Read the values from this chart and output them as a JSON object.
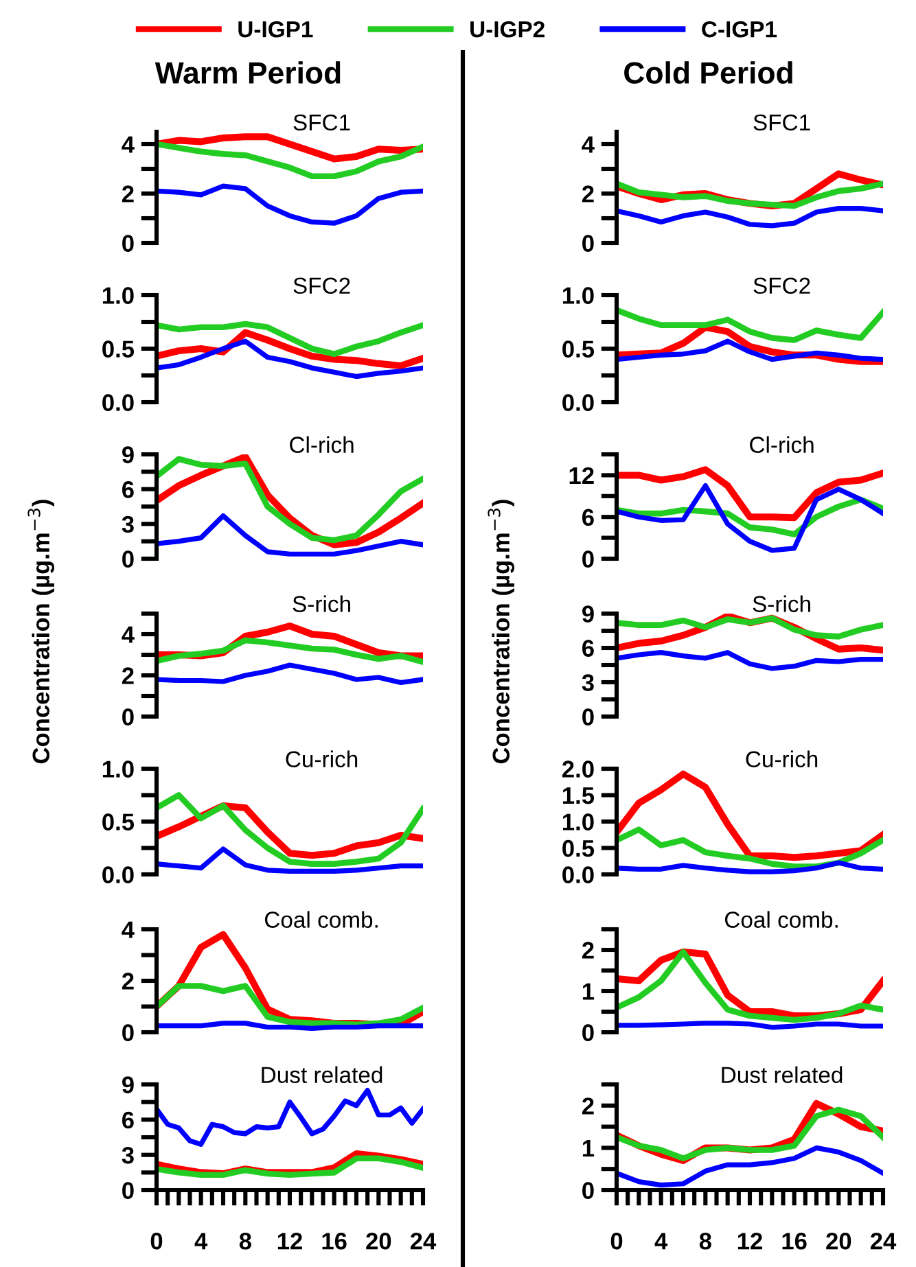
{
  "chart_data": [
    {
      "type": "line",
      "title": "SFC1",
      "subtitle": "Warm Period",
      "legend": "top",
      "tick_labels": "y",
      "x": [
        0,
        2,
        4,
        6,
        8,
        10,
        12,
        14,
        16,
        18,
        20,
        22,
        24
      ],
      "xlim": [
        0,
        24
      ],
      "ylim": [
        0,
        4.5
      ],
      "yticks": [
        0,
        {
          "value": 1,
          "label": null
        },
        2,
        {
          "value": 3,
          "label": null
        },
        4
      ],
      "series": [
        {
          "name": "U-IGP1",
          "color": "#ff0000",
          "values": [
            4.0,
            4.15,
            4.1,
            4.25,
            4.3,
            4.3,
            4.0,
            3.7,
            3.4,
            3.5,
            3.8,
            3.75,
            3.8
          ]
        },
        {
          "name": "U-IGP2",
          "color": "#22cc22",
          "values": [
            4.0,
            3.85,
            3.7,
            3.6,
            3.55,
            3.3,
            3.05,
            2.7,
            2.7,
            2.9,
            3.3,
            3.5,
            3.9
          ]
        },
        {
          "name": "C-IGP1",
          "color": "#0000ff",
          "values": [
            2.1,
            2.05,
            1.95,
            2.3,
            2.2,
            1.5,
            1.1,
            0.85,
            0.8,
            1.1,
            1.8,
            2.05,
            2.1
          ]
        }
      ]
    },
    {
      "type": "line",
      "title": "SFC2",
      "tick_labels": "y",
      "x": [
        0,
        2,
        4,
        6,
        8,
        10,
        12,
        14,
        16,
        18,
        20,
        22,
        24
      ],
      "xlim": [
        0,
        24
      ],
      "ylim": [
        0,
        1
      ],
      "yticks": [
        {
          "value": 0,
          "label": "0.0"
        },
        {
          "value": 0.25,
          "label": null
        },
        {
          "value": 0.5,
          "label": "0.5"
        },
        {
          "value": 0.75,
          "label": null
        },
        {
          "value": 1,
          "label": "1.0"
        }
      ],
      "series": [
        {
          "name": "U-IGP1",
          "color": "#ff0000",
          "values": [
            0.43,
            0.48,
            0.5,
            0.47,
            0.65,
            0.58,
            0.5,
            0.43,
            0.4,
            0.39,
            0.36,
            0.34,
            0.41
          ]
        },
        {
          "name": "U-IGP2",
          "color": "#22cc22",
          "values": [
            0.72,
            0.68,
            0.7,
            0.7,
            0.73,
            0.7,
            0.6,
            0.5,
            0.45,
            0.52,
            0.57,
            0.65,
            0.72
          ]
        },
        {
          "name": "C-IGP1",
          "color": "#0000ff",
          "values": [
            0.32,
            0.35,
            0.42,
            0.5,
            0.57,
            0.42,
            0.38,
            0.32,
            0.28,
            0.24,
            0.27,
            0.29,
            0.32
          ]
        }
      ]
    },
    {
      "type": "line",
      "title": "Cl-rich",
      "tick_labels": "y",
      "x": [
        0,
        2,
        4,
        6,
        8,
        10,
        12,
        14,
        16,
        18,
        20,
        22,
        24
      ],
      "xlim": [
        0,
        24
      ],
      "ylim": [
        0,
        9
      ],
      "yticks": [
        0,
        {
          "value": 1.5,
          "label": null
        },
        3,
        {
          "value": 4.5,
          "label": null
        },
        6,
        {
          "value": 7.5,
          "label": null
        },
        9
      ],
      "series": [
        {
          "name": "U-IGP1",
          "color": "#ff0000",
          "values": [
            5.0,
            6.3,
            7.2,
            8.0,
            8.8,
            5.5,
            3.5,
            2.0,
            1.2,
            1.4,
            2.3,
            3.5,
            4.8
          ]
        },
        {
          "name": "U-IGP2",
          "color": "#22cc22",
          "values": [
            7.1,
            8.6,
            8.1,
            8.0,
            8.2,
            4.5,
            3.0,
            1.8,
            1.6,
            2.0,
            3.8,
            5.8,
            6.9
          ]
        },
        {
          "name": "C-IGP1",
          "color": "#0000ff",
          "values": [
            1.3,
            1.5,
            1.8,
            3.7,
            2.0,
            0.6,
            0.4,
            0.4,
            0.4,
            0.7,
            1.1,
            1.5,
            1.2
          ]
        }
      ]
    },
    {
      "type": "line",
      "title": "S-rich",
      "ylabel": "Concentration (µg.m$^{−3}$)",
      "tick_labels": "y",
      "x": [
        0,
        2,
        4,
        6,
        8,
        10,
        12,
        14,
        16,
        18,
        20,
        22,
        24
      ],
      "xlim": [
        0,
        24
      ],
      "ylim": [
        0,
        5
      ],
      "yticks": [
        0,
        {
          "value": 1,
          "label": null
        },
        2,
        {
          "value": 3,
          "label": null
        },
        4,
        {
          "value": 5,
          "label": null
        }
      ],
      "series": [
        {
          "name": "U-IGP1",
          "color": "#ff0000",
          "values": [
            3.0,
            3.0,
            2.95,
            3.1,
            3.9,
            4.1,
            4.4,
            4.0,
            3.9,
            3.5,
            3.1,
            2.95,
            2.95
          ]
        },
        {
          "name": "U-IGP2",
          "color": "#22cc22",
          "values": [
            2.7,
            2.95,
            3.05,
            3.2,
            3.7,
            3.6,
            3.45,
            3.3,
            3.25,
            3.0,
            2.8,
            2.95,
            2.65
          ]
        },
        {
          "name": "C-IGP1",
          "color": "#0000ff",
          "values": [
            1.8,
            1.75,
            1.75,
            1.7,
            2.0,
            2.2,
            2.5,
            2.3,
            2.1,
            1.8,
            1.9,
            1.65,
            1.8
          ]
        }
      ]
    },
    {
      "type": "line",
      "title": "Cu-rich",
      "tick_labels": "y",
      "x": [
        0,
        2,
        4,
        6,
        8,
        10,
        12,
        14,
        16,
        18,
        20,
        22,
        24
      ],
      "xlim": [
        0,
        24
      ],
      "ylim": [
        0,
        1
      ],
      "yticks": [
        {
          "value": 0,
          "label": "0.0"
        },
        {
          "value": 0.25,
          "label": null
        },
        {
          "value": 0.5,
          "label": "0.5"
        },
        {
          "value": 0.75,
          "label": null
        },
        {
          "value": 1,
          "label": "1.0"
        }
      ],
      "series": [
        {
          "name": "U-IGP1",
          "color": "#ff0000",
          "values": [
            0.36,
            0.45,
            0.55,
            0.65,
            0.63,
            0.4,
            0.2,
            0.18,
            0.2,
            0.27,
            0.3,
            0.37,
            0.34
          ]
        },
        {
          "name": "U-IGP2",
          "color": "#22cc22",
          "values": [
            0.63,
            0.75,
            0.53,
            0.65,
            0.42,
            0.25,
            0.12,
            0.1,
            0.1,
            0.12,
            0.15,
            0.3,
            0.62
          ]
        },
        {
          "name": "C-IGP1",
          "color": "#0000ff",
          "values": [
            0.1,
            0.08,
            0.06,
            0.24,
            0.09,
            0.04,
            0.03,
            0.03,
            0.03,
            0.04,
            0.06,
            0.08,
            0.08
          ]
        }
      ]
    },
    {
      "type": "line",
      "title": "Coal comb.",
      "tick_labels": "y",
      "x": [
        0,
        2,
        4,
        6,
        8,
        10,
        12,
        14,
        16,
        18,
        20,
        22,
        24
      ],
      "xlim": [
        0,
        24
      ],
      "ylim": [
        0,
        4
      ],
      "yticks": [
        0,
        {
          "value": 1,
          "label": null
        },
        2,
        {
          "value": 3,
          "label": null
        },
        4
      ],
      "series": [
        {
          "name": "U-IGP1",
          "color": "#ff0000",
          "values": [
            1.0,
            1.8,
            3.3,
            3.8,
            2.5,
            0.9,
            0.5,
            0.45,
            0.35,
            0.35,
            0.3,
            0.3,
            0.8
          ]
        },
        {
          "name": "U-IGP2",
          "color": "#22cc22",
          "values": [
            1.0,
            1.8,
            1.8,
            1.6,
            1.8,
            0.6,
            0.4,
            0.35,
            0.35,
            0.3,
            0.35,
            0.5,
            0.95
          ]
        },
        {
          "name": "C-IGP1",
          "color": "#0000ff",
          "values": [
            0.25,
            0.25,
            0.25,
            0.35,
            0.35,
            0.2,
            0.2,
            0.15,
            0.2,
            0.2,
            0.25,
            0.25,
            0.25
          ]
        }
      ]
    },
    {
      "type": "line",
      "title": "Dust related",
      "x": [
        0,
        2,
        4,
        6,
        8,
        10,
        12,
        14,
        16,
        18,
        20,
        22,
        24
      ],
      "xlim": [
        0,
        24
      ],
      "xticks": [
        0,
        {
          "value": 1,
          "label": null
        },
        {
          "value": 2,
          "label": null
        },
        {
          "value": 3,
          "label": null
        },
        4,
        {
          "value": 5,
          "label": null
        },
        {
          "value": 6,
          "label": null
        },
        {
          "value": 7,
          "label": null
        },
        8,
        {
          "value": 9,
          "label": null
        },
        {
          "value": 10,
          "label": null
        },
        {
          "value": 11,
          "label": null
        },
        12,
        {
          "value": 13,
          "label": null
        },
        {
          "value": 14,
          "label": null
        },
        {
          "value": 15,
          "label": null
        },
        16,
        {
          "value": 17,
          "label": null
        },
        {
          "value": 18,
          "label": null
        },
        {
          "value": 19,
          "label": null
        },
        20,
        {
          "value": 21,
          "label": null
        },
        {
          "value": 22,
          "label": null
        },
        {
          "value": 23,
          "label": null
        },
        24
      ],
      "ylim": [
        0,
        9
      ],
      "yticks": [
        0,
        {
          "value": 1.5,
          "label": null
        },
        3,
        {
          "value": 4.5,
          "label": null
        },
        6,
        {
          "value": 7.5,
          "label": null
        },
        9
      ],
      "series": [
        {
          "name": "U-IGP1",
          "color": "#ff0000",
          "values": [
            2.2,
            1.8,
            1.5,
            1.4,
            1.8,
            1.5,
            1.5,
            1.5,
            1.9,
            3.1,
            2.9,
            2.6,
            2.2
          ]
        },
        {
          "name": "U-IGP2",
          "color": "#22cc22",
          "values": [
            1.8,
            1.5,
            1.3,
            1.3,
            1.7,
            1.4,
            1.3,
            1.4,
            1.5,
            2.7,
            2.7,
            2.4,
            1.9
          ]
        },
        {
          "name": "C-IGP1",
          "color": "#0000ff",
          "x": [
            0,
            1,
            2,
            3,
            4,
            5,
            6,
            7,
            8,
            9,
            10,
            11,
            12,
            13,
            14,
            15,
            16,
            17,
            18,
            19,
            20,
            21,
            22,
            23,
            24
          ],
          "values": [
            6.9,
            5.6,
            5.3,
            4.2,
            3.9,
            5.6,
            5.4,
            4.9,
            4.8,
            5.4,
            5.3,
            5.4,
            7.5,
            6.2,
            4.8,
            5.2,
            6.3,
            7.6,
            7.2,
            8.5,
            6.4,
            6.4,
            7.0,
            5.7,
            6.9
          ]
        }
      ]
    },
    {
      "type": "line",
      "title": "SFC1",
      "subtitle": "Cold Period",
      "tick_labels": "y",
      "x": [
        0,
        2,
        4,
        6,
        8,
        10,
        12,
        14,
        16,
        18,
        20,
        22,
        24
      ],
      "xlim": [
        0,
        24
      ],
      "ylim": [
        0,
        4.5
      ],
      "yticks": [
        0,
        {
          "value": 1,
          "label": null
        },
        2,
        {
          "value": 3,
          "label": null
        },
        4
      ],
      "series": [
        {
          "name": "U-IGP1",
          "color": "#ff0000",
          "values": [
            2.3,
            2.0,
            1.75,
            1.95,
            2.0,
            1.75,
            1.6,
            1.5,
            1.6,
            2.2,
            2.8,
            2.55,
            2.35
          ]
        },
        {
          "name": "U-IGP2",
          "color": "#22cc22",
          "values": [
            2.4,
            2.05,
            1.95,
            1.85,
            1.9,
            1.7,
            1.6,
            1.55,
            1.5,
            1.85,
            2.1,
            2.2,
            2.4
          ]
        },
        {
          "name": "C-IGP1",
          "color": "#0000ff",
          "values": [
            1.3,
            1.1,
            0.85,
            1.1,
            1.25,
            1.05,
            0.75,
            0.7,
            0.8,
            1.25,
            1.4,
            1.4,
            1.3
          ]
        }
      ]
    },
    {
      "type": "line",
      "title": "SFC2",
      "tick_labels": "y",
      "x": [
        0,
        2,
        4,
        6,
        8,
        10,
        12,
        14,
        16,
        18,
        20,
        22,
        24
      ],
      "xlim": [
        0,
        24
      ],
      "ylim": [
        0,
        1
      ],
      "yticks": [
        {
          "value": 0,
          "label": "0.0"
        },
        {
          "value": 0.25,
          "label": null
        },
        {
          "value": 0.5,
          "label": "0.5"
        },
        {
          "value": 0.75,
          "label": null
        },
        {
          "value": 1,
          "label": "1.0"
        }
      ],
      "series": [
        {
          "name": "U-IGP1",
          "color": "#ff0000",
          "values": [
            0.44,
            0.45,
            0.46,
            0.55,
            0.7,
            0.66,
            0.52,
            0.47,
            0.44,
            0.44,
            0.4,
            0.38,
            0.38
          ]
        },
        {
          "name": "U-IGP2",
          "color": "#22cc22",
          "values": [
            0.86,
            0.78,
            0.72,
            0.72,
            0.72,
            0.77,
            0.66,
            0.6,
            0.58,
            0.67,
            0.63,
            0.6,
            0.84
          ]
        },
        {
          "name": "C-IGP1",
          "color": "#0000ff",
          "values": [
            0.4,
            0.42,
            0.44,
            0.45,
            0.48,
            0.57,
            0.47,
            0.4,
            0.43,
            0.46,
            0.44,
            0.41,
            0.4
          ]
        }
      ]
    },
    {
      "type": "line",
      "title": "Cl-rich",
      "tick_labels": "y",
      "x": [
        0,
        2,
        4,
        6,
        8,
        10,
        12,
        14,
        16,
        18,
        20,
        22,
        24
      ],
      "xlim": [
        0,
        24
      ],
      "ylim": [
        0,
        15
      ],
      "yticks": [
        0,
        {
          "value": 3,
          "label": null
        },
        6,
        {
          "value": 9,
          "label": null
        },
        12,
        {
          "value": 15,
          "label": null
        }
      ],
      "series": [
        {
          "name": "U-IGP1",
          "color": "#ff0000",
          "values": [
            12.0,
            12.0,
            11.3,
            11.8,
            12.8,
            10.5,
            6.0,
            6.0,
            5.9,
            9.5,
            11.0,
            11.3,
            12.3
          ]
        },
        {
          "name": "U-IGP2",
          "color": "#22cc22",
          "values": [
            7.0,
            6.5,
            6.5,
            7.0,
            6.8,
            6.5,
            4.5,
            4.2,
            3.5,
            6.0,
            7.5,
            8.5,
            7.2
          ]
        },
        {
          "name": "C-IGP1",
          "color": "#0000ff",
          "values": [
            6.8,
            6.0,
            5.5,
            5.6,
            10.5,
            5.0,
            2.5,
            1.2,
            1.5,
            8.5,
            10.0,
            8.5,
            6.5
          ]
        }
      ]
    },
    {
      "type": "line",
      "title": "S-rich",
      "ylabel": "Concentration (µg.m$^{−3}$)",
      "tick_labels": "y",
      "x": [
        0,
        2,
        4,
        6,
        8,
        10,
        12,
        14,
        16,
        18,
        20,
        22,
        24
      ],
      "xlim": [
        0,
        24
      ],
      "ylim": [
        0,
        9
      ],
      "yticks": [
        0,
        {
          "value": 1.5,
          "label": null
        },
        3,
        {
          "value": 4.5,
          "label": null
        },
        6,
        {
          "value": 7.5,
          "label": null
        },
        9
      ],
      "series": [
        {
          "name": "U-IGP1",
          "color": "#ff0000",
          "values": [
            6.0,
            6.4,
            6.6,
            7.1,
            7.8,
            8.8,
            8.2,
            8.6,
            7.8,
            6.8,
            5.9,
            6.0,
            5.8
          ]
        },
        {
          "name": "U-IGP2",
          "color": "#22cc22",
          "values": [
            8.2,
            8.0,
            8.0,
            8.4,
            7.8,
            8.5,
            8.2,
            8.6,
            7.6,
            7.1,
            7.0,
            7.6,
            8.0
          ]
        },
        {
          "name": "C-IGP1",
          "color": "#0000ff",
          "values": [
            5.1,
            5.4,
            5.6,
            5.3,
            5.1,
            5.6,
            4.6,
            4.2,
            4.4,
            4.9,
            4.8,
            5.0,
            5.0
          ]
        }
      ]
    },
    {
      "type": "line",
      "title": "Cu-rich",
      "tick_labels": "y",
      "x": [
        0,
        2,
        4,
        6,
        8,
        10,
        12,
        14,
        16,
        18,
        20,
        22,
        24
      ],
      "xlim": [
        0,
        24
      ],
      "ylim": [
        0,
        2
      ],
      "yticks": [
        {
          "value": 0,
          "label": "0.0"
        },
        {
          "value": 0.5,
          "label": "0.5"
        },
        {
          "value": 1,
          "label": "1.0"
        },
        {
          "value": 1.5,
          "label": "1.5"
        },
        {
          "value": 2,
          "label": "2.0"
        }
      ],
      "series": [
        {
          "name": "U-IGP1",
          "color": "#ff0000",
          "values": [
            0.8,
            1.35,
            1.6,
            1.9,
            1.65,
            0.95,
            0.35,
            0.35,
            0.32,
            0.35,
            0.4,
            0.45,
            0.75
          ]
        },
        {
          "name": "U-IGP2",
          "color": "#22cc22",
          "values": [
            0.65,
            0.85,
            0.55,
            0.65,
            0.42,
            0.35,
            0.3,
            0.2,
            0.15,
            0.15,
            0.22,
            0.4,
            0.65
          ]
        },
        {
          "name": "C-IGP1",
          "color": "#0000ff",
          "values": [
            0.12,
            0.1,
            0.1,
            0.17,
            0.12,
            0.08,
            0.05,
            0.05,
            0.07,
            0.12,
            0.22,
            0.12,
            0.1
          ]
        }
      ]
    },
    {
      "type": "line",
      "title": "Coal comb.",
      "tick_labels": "y",
      "x": [
        0,
        2,
        4,
        6,
        8,
        10,
        12,
        14,
        16,
        18,
        20,
        22,
        24
      ],
      "xlim": [
        0,
        24
      ],
      "ylim": [
        0,
        2.5
      ],
      "yticks": [
        0,
        {
          "value": 0.5,
          "label": null
        },
        1,
        {
          "value": 1.5,
          "label": null
        },
        2,
        {
          "value": 2.5,
          "label": null
        }
      ],
      "series": [
        {
          "name": "U-IGP1",
          "color": "#ff0000",
          "values": [
            1.3,
            1.25,
            1.75,
            1.95,
            1.9,
            0.9,
            0.5,
            0.5,
            0.4,
            0.4,
            0.45,
            0.55,
            1.25
          ]
        },
        {
          "name": "U-IGP2",
          "color": "#22cc22",
          "values": [
            0.6,
            0.85,
            1.25,
            1.95,
            1.2,
            0.55,
            0.4,
            0.35,
            0.3,
            0.35,
            0.45,
            0.65,
            0.55
          ]
        },
        {
          "name": "C-IGP1",
          "color": "#0000ff",
          "values": [
            0.17,
            0.17,
            0.18,
            0.2,
            0.22,
            0.22,
            0.2,
            0.12,
            0.15,
            0.2,
            0.2,
            0.15,
            0.15
          ]
        }
      ]
    },
    {
      "type": "line",
      "title": "Dust related",
      "x": [
        0,
        2,
        4,
        6,
        8,
        10,
        12,
        14,
        16,
        18,
        20,
        22,
        24
      ],
      "xlim": [
        0,
        24
      ],
      "xticks": [
        0,
        {
          "value": 1,
          "label": null
        },
        {
          "value": 2,
          "label": null
        },
        {
          "value": 3,
          "label": null
        },
        4,
        {
          "value": 5,
          "label": null
        },
        {
          "value": 6,
          "label": null
        },
        {
          "value": 7,
          "label": null
        },
        8,
        {
          "value": 9,
          "label": null
        },
        {
          "value": 10,
          "label": null
        },
        {
          "value": 11,
          "label": null
        },
        12,
        {
          "value": 13,
          "label": null
        },
        {
          "value": 14,
          "label": null
        },
        {
          "value": 15,
          "label": null
        },
        16,
        {
          "value": 17,
          "label": null
        },
        {
          "value": 18,
          "label": null
        },
        {
          "value": 19,
          "label": null
        },
        20,
        {
          "value": 21,
          "label": null
        },
        {
          "value": 22,
          "label": null
        },
        {
          "value": 23,
          "label": null
        },
        24
      ],
      "ylim": [
        0,
        2.5
      ],
      "yticks": [
        0,
        {
          "value": 0.5,
          "label": null
        },
        1,
        {
          "value": 1.5,
          "label": null
        },
        2,
        {
          "value": 2.5,
          "label": null
        }
      ],
      "series": [
        {
          "name": "U-IGP1",
          "color": "#ff0000",
          "values": [
            1.3,
            1.05,
            0.85,
            0.7,
            1.0,
            1.0,
            0.95,
            1.0,
            1.2,
            2.05,
            1.8,
            1.5,
            1.4
          ]
        },
        {
          "name": "U-IGP2",
          "color": "#22cc22",
          "values": [
            1.25,
            1.05,
            0.95,
            0.75,
            0.95,
            1.0,
            0.95,
            0.95,
            1.05,
            1.75,
            1.9,
            1.75,
            1.25
          ]
        },
        {
          "name": "C-IGP1",
          "color": "#0000ff",
          "values": [
            0.4,
            0.2,
            0.12,
            0.15,
            0.45,
            0.6,
            0.6,
            0.65,
            0.75,
            1.0,
            0.9,
            0.7,
            0.4
          ]
        }
      ]
    }
  ]
}
